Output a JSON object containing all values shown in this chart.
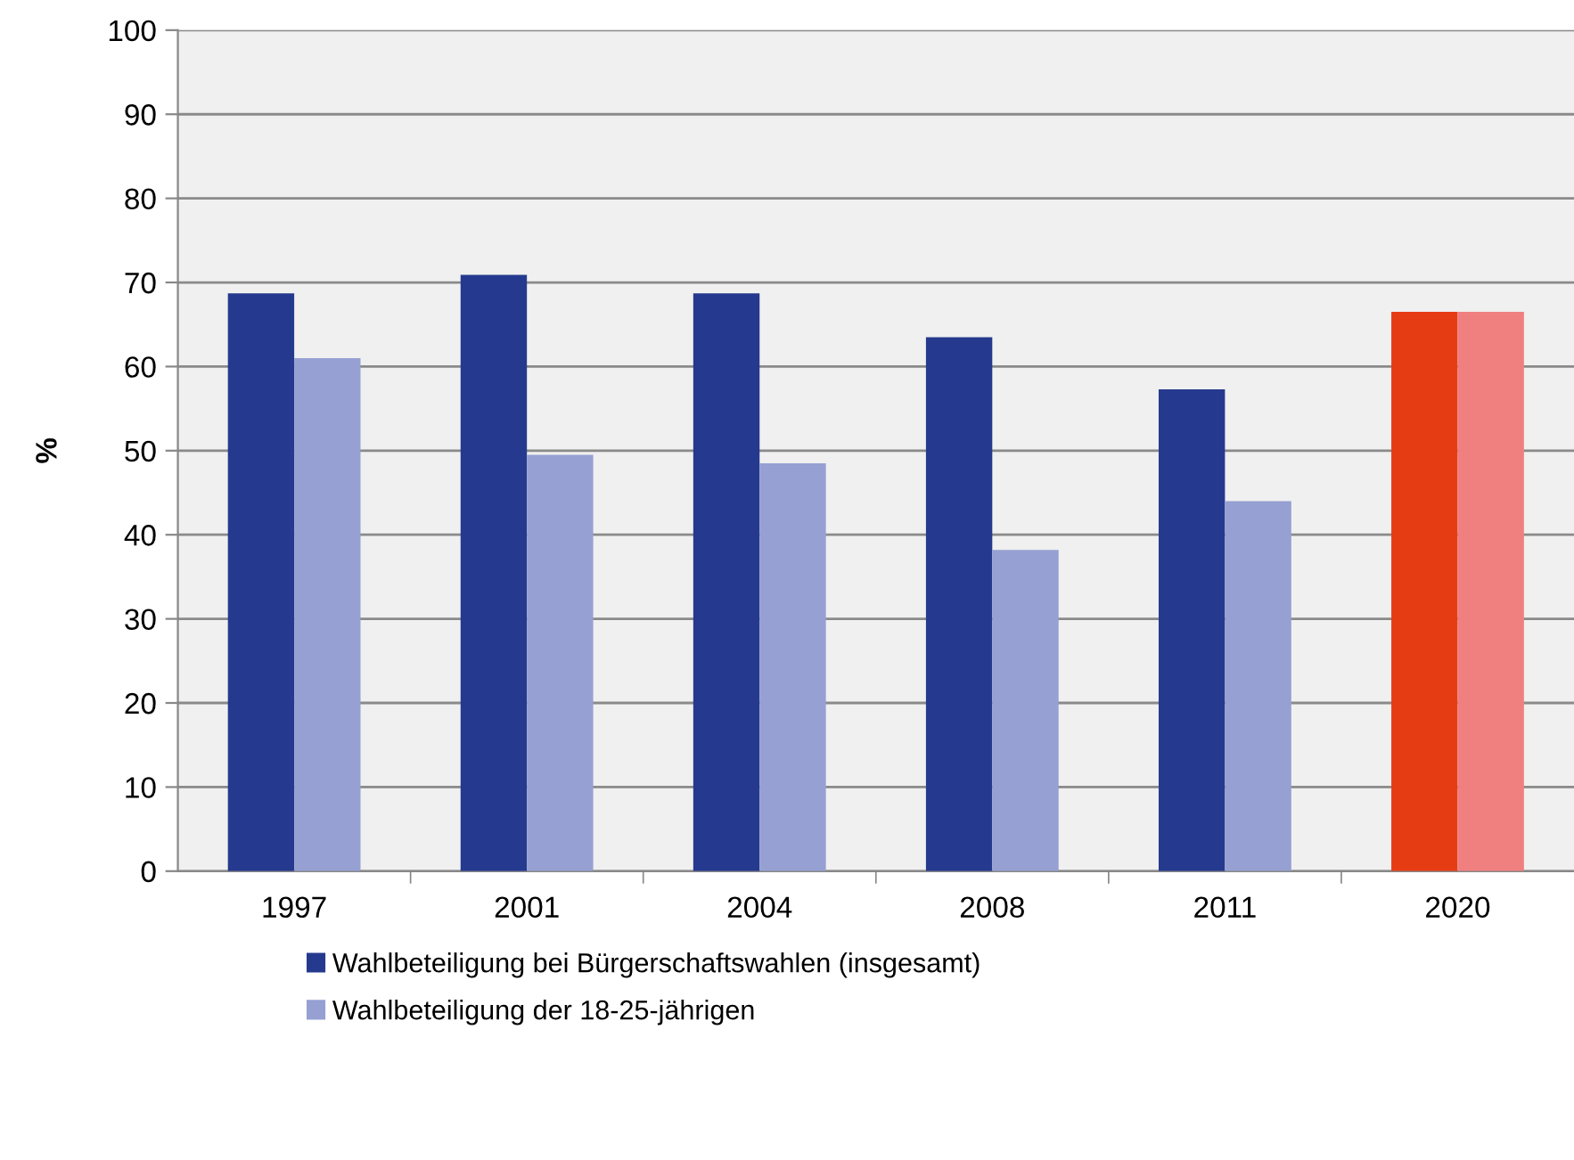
{
  "chart_data": {
    "type": "bar",
    "ylabel": "%",
    "categories": [
      "1997",
      "2001",
      "2004",
      "2008",
      "2011",
      "2020"
    ],
    "series": [
      {
        "name": "Wahlbeteiligung bei Bürgerschaftswahlen (insgesamt)",
        "color": "#253a8e",
        "colors": [
          "#253a8e",
          "#253a8e",
          "#253a8e",
          "#253a8e",
          "#253a8e",
          "#e63c14"
        ],
        "values": [
          68.7,
          70.9,
          68.7,
          63.5,
          57.3,
          66.5
        ]
      },
      {
        "name": "Wahlbeteiligung der 18-25-jährigen",
        "color": "#96a0d2",
        "colors": [
          "#96a0d2",
          "#96a0d2",
          "#96a0d2",
          "#96a0d2",
          "#96a0d2",
          "#f08080"
        ],
        "values": [
          61.0,
          49.5,
          48.5,
          38.2,
          44.0,
          66.5
        ]
      }
    ],
    "ylim": [
      0,
      100
    ],
    "yticks": [
      0,
      10,
      20,
      30,
      40,
      50,
      60,
      70,
      80,
      90,
      100
    ],
    "grid": "y",
    "legend": "bottom"
  }
}
